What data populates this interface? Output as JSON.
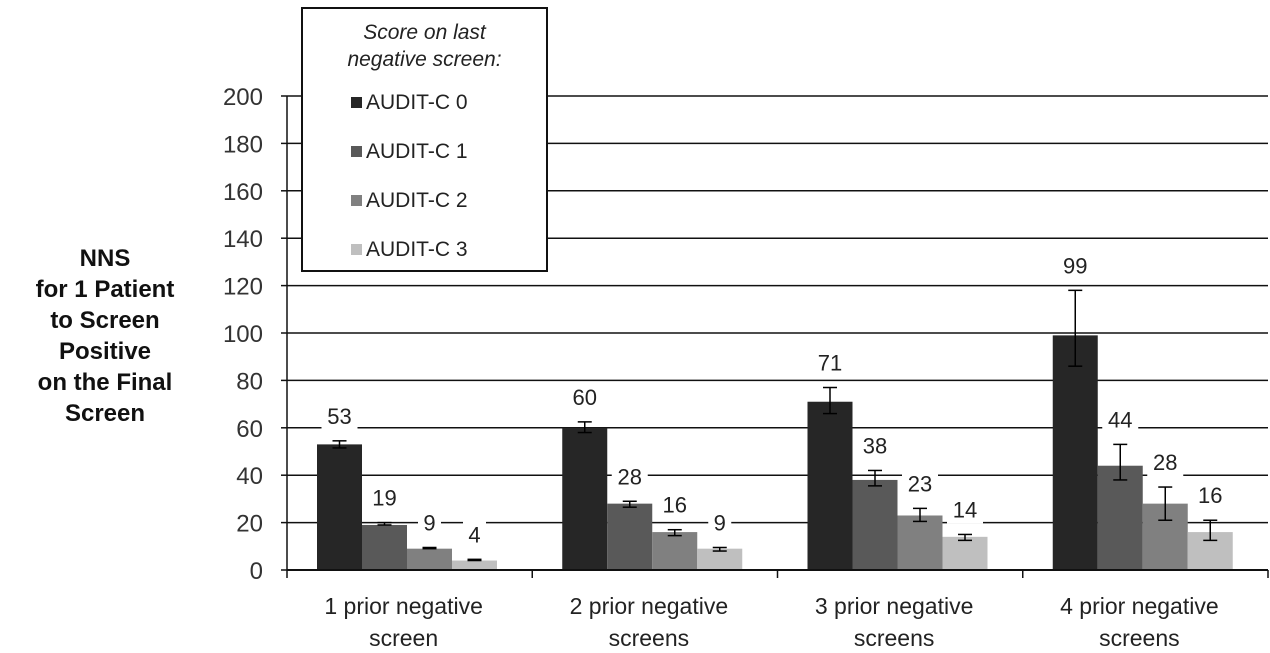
{
  "chart_data": {
    "type": "bar",
    "ylabel_lines": [
      "NNS",
      "for 1 Patient",
      "to Screen",
      "Positive",
      "on the Final",
      "Screen"
    ],
    "categories": [
      [
        "1 prior negative",
        "screen"
      ],
      [
        "2 prior negative",
        "screens"
      ],
      [
        "3 prior negative",
        "screens"
      ],
      [
        "4 prior negative",
        "screens"
      ]
    ],
    "ylim": [
      0,
      200
    ],
    "yticks": [
      0,
      20,
      40,
      60,
      80,
      100,
      120,
      140,
      160,
      180,
      200
    ],
    "grid": true,
    "legend": {
      "title_lines": [
        "Score on last",
        "negative screen:"
      ],
      "placement": "top-left"
    },
    "series": [
      {
        "name": "AUDIT-C 0",
        "color": "#262626",
        "values": [
          53,
          60,
          71,
          99
        ],
        "err_low": [
          51.5,
          58,
          66,
          86
        ],
        "err_high": [
          54.5,
          62.5,
          77,
          118
        ]
      },
      {
        "name": "AUDIT-C 1",
        "color": "#595959",
        "values": [
          19,
          28,
          38,
          44
        ],
        "err_low": [
          19,
          26.5,
          35.5,
          38
        ],
        "err_high": [
          20,
          29,
          42,
          53
        ]
      },
      {
        "name": "AUDIT-C 2",
        "color": "#808080",
        "values": [
          9,
          16,
          23,
          28
        ],
        "err_low": [
          9,
          14.5,
          20.5,
          21
        ],
        "err_high": [
          9.5,
          17,
          26,
          35
        ]
      },
      {
        "name": "AUDIT-C 3",
        "color": "#bfbfbf",
        "values": [
          4,
          9,
          14,
          16
        ],
        "err_low": [
          4,
          8,
          12.5,
          12.5
        ],
        "err_high": [
          4.5,
          9.5,
          15,
          21
        ]
      }
    ],
    "data_labels": [
      [
        "53",
        "60",
        "71",
        "99"
      ],
      [
        "19",
        "28",
        "38",
        "44"
      ],
      [
        "9",
        "16",
        "23",
        "28"
      ],
      [
        "4",
        "9",
        "14",
        "16"
      ]
    ]
  }
}
